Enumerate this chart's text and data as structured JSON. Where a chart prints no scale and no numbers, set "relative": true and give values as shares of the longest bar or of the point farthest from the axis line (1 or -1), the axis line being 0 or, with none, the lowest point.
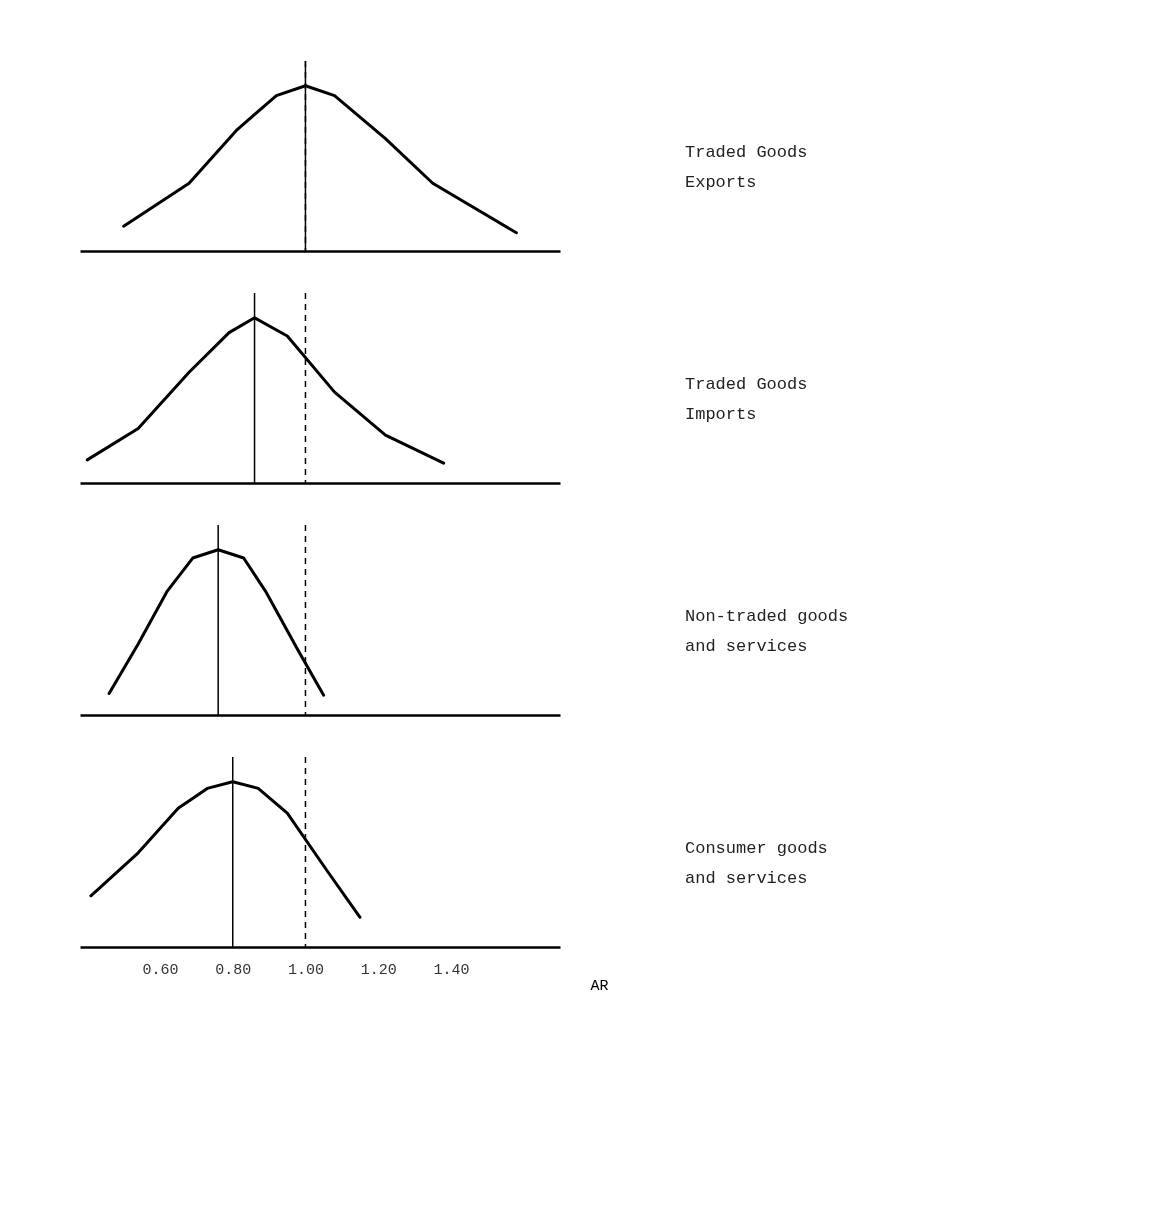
{
  "chart_data": [
    {
      "type": "line",
      "relative": true,
      "xlim": [
        0.38,
        1.7
      ],
      "tick_labels": false,
      "line_style": "solid",
      "series": [
        {
          "name": "Traded Goods Exports",
          "color": "#000000",
          "x": [
            0.5,
            0.68,
            0.81,
            0.92,
            1.0,
            1.08,
            1.22,
            1.35,
            1.58
          ],
          "values": [
            0.15,
            0.41,
            0.73,
            0.94,
            1.0,
            0.94,
            0.68,
            0.41,
            0.11
          ]
        }
      ],
      "ref_lines": [
        {
          "axis": "x",
          "value": 1.0,
          "color": "#000000",
          "line_style": "solid"
        },
        {
          "axis": "x",
          "value": 1.0,
          "color": "#000000",
          "line_style": "dashed"
        }
      ]
    },
    {
      "type": "line",
      "relative": true,
      "xlim": [
        0.38,
        1.7
      ],
      "tick_labels": false,
      "line_style": "solid",
      "series": [
        {
          "name": "Traded Goods Imports",
          "color": "#000000",
          "x": [
            0.4,
            0.54,
            0.68,
            0.79,
            0.86,
            0.95,
            1.08,
            1.22,
            1.38
          ],
          "values": [
            0.14,
            0.33,
            0.67,
            0.91,
            1.0,
            0.89,
            0.55,
            0.29,
            0.12
          ]
        }
      ],
      "ref_lines": [
        {
          "axis": "x",
          "value": 0.86,
          "color": "#000000",
          "line_style": "solid"
        },
        {
          "axis": "x",
          "value": 1.0,
          "color": "#000000",
          "line_style": "dashed"
        }
      ]
    },
    {
      "type": "line",
      "relative": true,
      "xlim": [
        0.38,
        1.7
      ],
      "tick_labels": false,
      "line_style": "solid",
      "series": [
        {
          "name": "Non-traded goods and services",
          "color": "#000000",
          "x": [
            0.46,
            0.54,
            0.62,
            0.69,
            0.76,
            0.83,
            0.89,
            0.98,
            1.05
          ],
          "values": [
            0.13,
            0.43,
            0.75,
            0.95,
            1.0,
            0.95,
            0.75,
            0.39,
            0.12
          ]
        }
      ],
      "ref_lines": [
        {
          "axis": "x",
          "value": 0.76,
          "color": "#000000",
          "line_style": "solid"
        },
        {
          "axis": "x",
          "value": 1.0,
          "color": "#000000",
          "line_style": "dashed"
        }
      ]
    },
    {
      "type": "line",
      "relative": true,
      "xlim": [
        0.38,
        1.7
      ],
      "tick_labels": "x",
      "line_style": "solid",
      "xlabel": "AR",
      "xticks": [
        {
          "value": 0.6,
          "label": "0.60"
        },
        {
          "value": 0.8,
          "label": "0.80"
        },
        {
          "value": 1.0,
          "label": "1.00"
        },
        {
          "value": 1.2,
          "label": "1.20"
        },
        {
          "value": 1.4,
          "label": "1.40"
        }
      ],
      "series": [
        {
          "name": "Consumer goods and services",
          "color": "#000000",
          "x": [
            0.41,
            0.54,
            0.65,
            0.73,
            0.8,
            0.87,
            0.95,
            1.06,
            1.15
          ],
          "values": [
            0.31,
            0.57,
            0.84,
            0.96,
            1.0,
            0.96,
            0.81,
            0.46,
            0.18
          ]
        }
      ],
      "ref_lines": [
        {
          "axis": "x",
          "value": 0.8,
          "color": "#000000",
          "line_style": "solid"
        },
        {
          "axis": "x",
          "value": 1.0,
          "color": "#000000",
          "line_style": "dashed"
        }
      ]
    }
  ]
}
